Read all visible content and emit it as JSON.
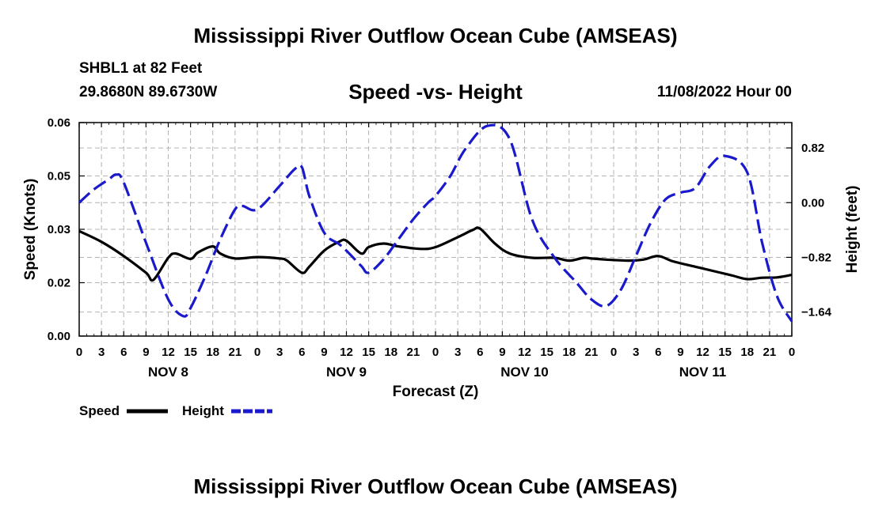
{
  "header": {
    "title": "Mississippi River Outflow Ocean Cube (AMSEAS)",
    "station": "SHBL1 at 82 Feet",
    "coords": "29.8680N  89.6730W",
    "subtitle": "Speed -vs- Height",
    "datetime": "11/08/2022 Hour 00"
  },
  "footer": {
    "title": "Mississippi River Outflow Ocean Cube (AMSEAS)"
  },
  "chart_data": {
    "type": "line",
    "xlabel": "Forecast (Z)",
    "ylabel": "Speed (Knots)",
    "y2label": "Height (feet)",
    "x_range": [
      0,
      96
    ],
    "ylim": [
      0.0,
      0.06
    ],
    "y2lim": [
      -2.0,
      1.2
    ],
    "grid": true,
    "legend_position": "bottom-left",
    "x_ticks": [
      "0",
      "3",
      "6",
      "9",
      "12",
      "15",
      "18",
      "21",
      "0",
      "3",
      "6",
      "9",
      "12",
      "15",
      "18",
      "21",
      "0",
      "3",
      "6",
      "9",
      "12",
      "15",
      "18",
      "21",
      "0",
      "3",
      "6",
      "9",
      "12",
      "15",
      "18",
      "21",
      "0"
    ],
    "day_labels": [
      "NOV 8",
      "NOV 9",
      "NOV 10",
      "NOV 11"
    ],
    "y_ticks": [
      "0.00",
      "0.02",
      "0.03",
      "0.05",
      "0.06"
    ],
    "y_tick_values": [
      0.0,
      0.015,
      0.03,
      0.045,
      0.06
    ],
    "y2_ticks": [
      "0.82",
      "0.00",
      "−0.82",
      "−1.64"
    ],
    "y2_tick_values": [
      0.82,
      0.0,
      -0.82,
      -1.64
    ],
    "series": [
      {
        "name": "Speed",
        "color": "#000000",
        "dash": "solid",
        "axis": "left",
        "x": [
          0,
          3,
          6,
          9,
          10,
          12,
          13,
          15,
          16,
          18,
          19,
          21,
          24,
          27,
          28,
          30,
          31,
          33,
          35,
          36,
          38,
          39,
          41,
          43,
          46,
          48,
          51,
          53,
          54,
          56,
          58,
          61,
          64,
          66,
          68,
          69,
          71,
          74,
          76,
          78,
          80,
          83,
          86,
          88,
          90,
          92,
          94,
          96
        ],
        "y": [
          0.0295,
          0.0265,
          0.0225,
          0.0178,
          0.0158,
          0.022,
          0.0232,
          0.0217,
          0.0235,
          0.0252,
          0.0232,
          0.0218,
          0.0222,
          0.0218,
          0.0212,
          0.0178,
          0.0195,
          0.024,
          0.0265,
          0.0268,
          0.0232,
          0.025,
          0.026,
          0.0252,
          0.0245,
          0.025,
          0.0278,
          0.0298,
          0.0302,
          0.026,
          0.0232,
          0.022,
          0.022,
          0.0212,
          0.022,
          0.0218,
          0.0215,
          0.0212,
          0.0215,
          0.0225,
          0.021,
          0.0195,
          0.018,
          0.017,
          0.016,
          0.0164,
          0.0165,
          0.0172
        ]
      },
      {
        "name": "Height",
        "color": "#1a1acc",
        "dash": "dashed",
        "axis": "right",
        "x": [
          0,
          2,
          4,
          5,
          6,
          9,
          12,
          14,
          15,
          17,
          19,
          21,
          22,
          24,
          27,
          29,
          30,
          31,
          33,
          35,
          36,
          38,
          39,
          41,
          43,
          45,
          47,
          48,
          50,
          52,
          55,
          58,
          61,
          64,
          67,
          69,
          71,
          73,
          75,
          77,
          79,
          81,
          83,
          85,
          87,
          90,
          92,
          94,
          96
        ],
        "y": [
          0.0,
          0.2,
          0.35,
          0.42,
          0.3,
          -0.6,
          -1.45,
          -1.7,
          -1.58,
          -1.1,
          -0.55,
          -0.1,
          -0.05,
          -0.1,
          0.25,
          0.5,
          0.53,
          0.1,
          -0.45,
          -0.62,
          -0.72,
          -0.95,
          -1.05,
          -0.85,
          -0.55,
          -0.25,
          0.0,
          0.1,
          0.4,
          0.8,
          1.15,
          0.95,
          -0.25,
          -0.82,
          -1.2,
          -1.45,
          -1.55,
          -1.3,
          -0.8,
          -0.3,
          0.05,
          0.15,
          0.22,
          0.55,
          0.7,
          0.45,
          -0.6,
          -1.4,
          -1.78
        ]
      }
    ]
  }
}
